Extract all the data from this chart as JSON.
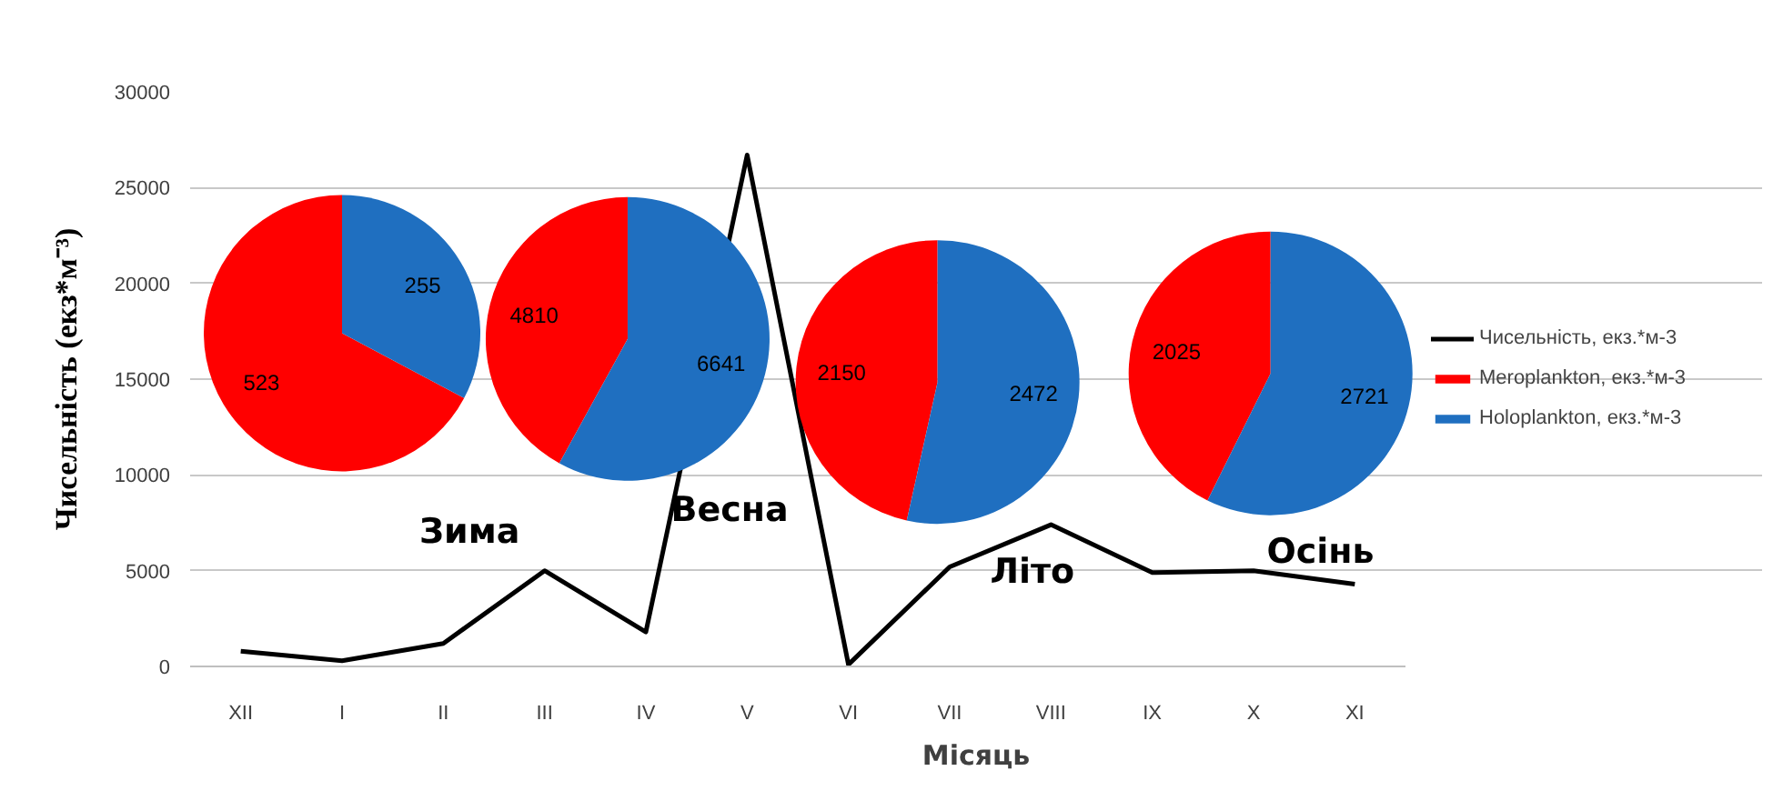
{
  "chart_data": [
    {
      "type": "line",
      "xlabel": "Місяць",
      "ylabel": "Чисельність (екз*м⁻³)",
      "categories": [
        "XII",
        "I",
        "II",
        "III",
        "IV",
        "V",
        "VI",
        "VII",
        "VIII",
        "IX",
        "X",
        "XI"
      ],
      "series": [
        {
          "name": "Чисельність, екз.*м-3",
          "color": "#000000",
          "values": [
            800,
            300,
            1200,
            5000,
            1800,
            26700,
            100,
            5200,
            7400,
            4900,
            5000,
            4300
          ]
        }
      ],
      "ylim": [
        0,
        30000
      ],
      "yticks": [
        0,
        5000,
        10000,
        15000,
        20000,
        25000,
        30000
      ],
      "grid": "y",
      "legend": "right",
      "marker": "none",
      "line_style": "solid",
      "annotations": [
        "Зима",
        "Весна",
        "Літо",
        "Осінь"
      ]
    },
    {
      "type": "pie",
      "categories": [
        "Meroplankton, екз.*м-3",
        "Holoplankton, екз.*м-3"
      ],
      "values": [
        523,
        255
      ],
      "colors": [
        "#ff0000",
        "#1f6fc0"
      ],
      "data_labels": true,
      "legend": "right"
    },
    {
      "type": "pie",
      "categories": [
        null,
        null
      ],
      "values": [
        4810,
        6641
      ],
      "colors": [
        "#ff0000",
        "#1f6fc0"
      ],
      "data_labels": true
    },
    {
      "type": "pie",
      "categories": [
        null,
        null
      ],
      "values": [
        2150,
        2472
      ],
      "colors": [
        "#ff0000",
        "#1f6fc0"
      ],
      "data_labels": true
    },
    {
      "type": "pie",
      "categories": [
        null,
        null
      ],
      "values": [
        2025,
        2721
      ],
      "colors": [
        "#ff0000",
        "#1f6fc0"
      ],
      "data_labels": true
    }
  ]
}
